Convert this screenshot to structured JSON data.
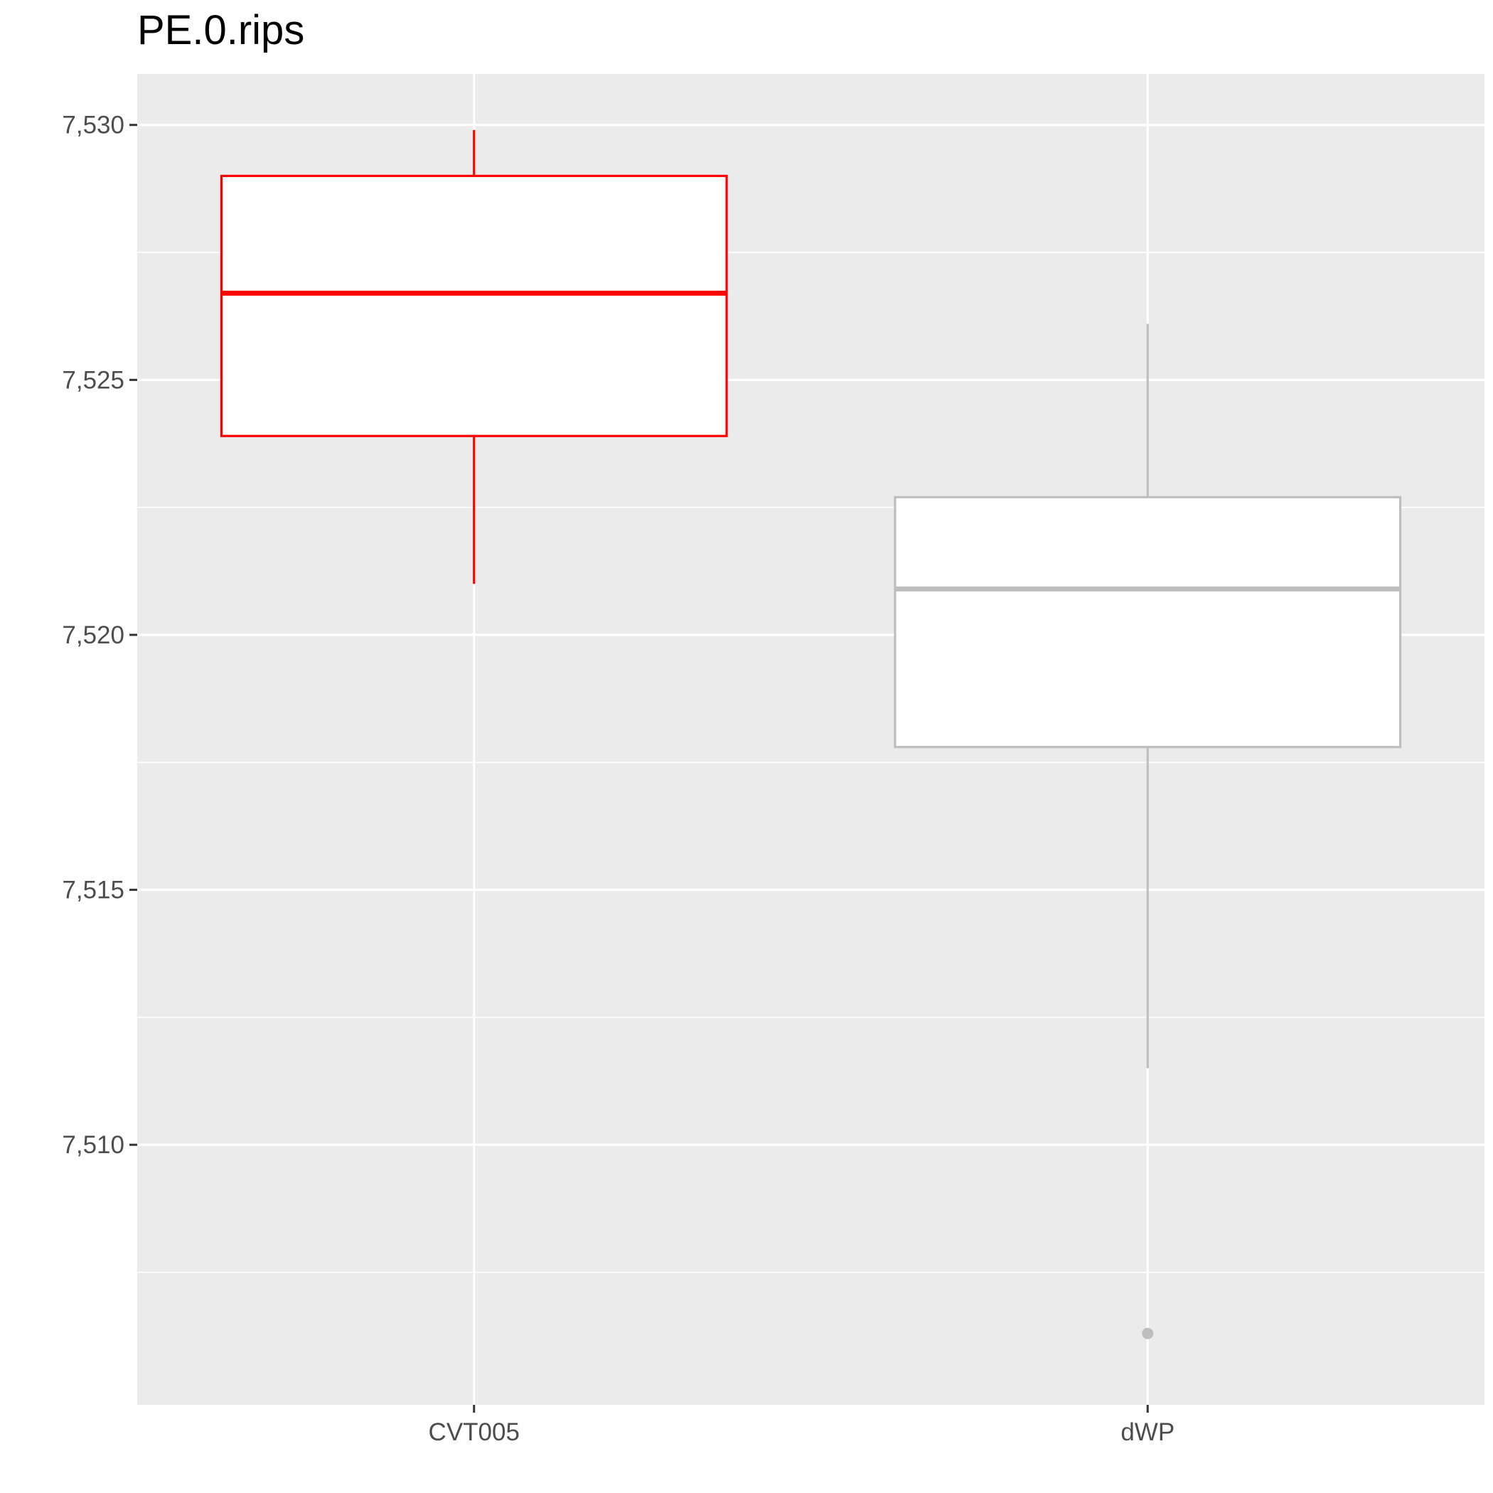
{
  "chart_data": {
    "type": "boxplot",
    "title": "PE.0.rips",
    "xlabel": "",
    "ylabel": "",
    "categories": [
      "CVT005",
      "dWP"
    ],
    "ylim": [
      7.5049,
      7.531
    ],
    "y_ticks": [
      {
        "value": 7.51,
        "label": "7,510"
      },
      {
        "value": 7.515,
        "label": "7,515"
      },
      {
        "value": 7.52,
        "label": "7,520"
      },
      {
        "value": 7.525,
        "label": "7,525"
      },
      {
        "value": 7.53,
        "label": "7,530"
      }
    ],
    "minor_y_ticks": [
      7.5075,
      7.5125,
      7.5175,
      7.5225,
      7.5275
    ],
    "grid": true,
    "legend": "none",
    "series": [
      {
        "category": "CVT005",
        "whisker_low": 7.521,
        "q1": 7.5239,
        "median": 7.5267,
        "q3": 7.529,
        "whisker_high": 7.5299,
        "outliers": [],
        "color": "#ff0000"
      },
      {
        "category": "dWP",
        "whisker_low": 7.5115,
        "q1": 7.5178,
        "median": 7.5209,
        "q3": 7.5227,
        "whisker_high": 7.5261,
        "outliers": [
          7.5063
        ],
        "color": "#bebebe"
      }
    ],
    "colors": {
      "panel_background": "#ebebeb",
      "grid": "#ffffff",
      "box_fill": "#ffffff",
      "axis_text": "#4d4d4d",
      "ticks": "#333333"
    }
  }
}
